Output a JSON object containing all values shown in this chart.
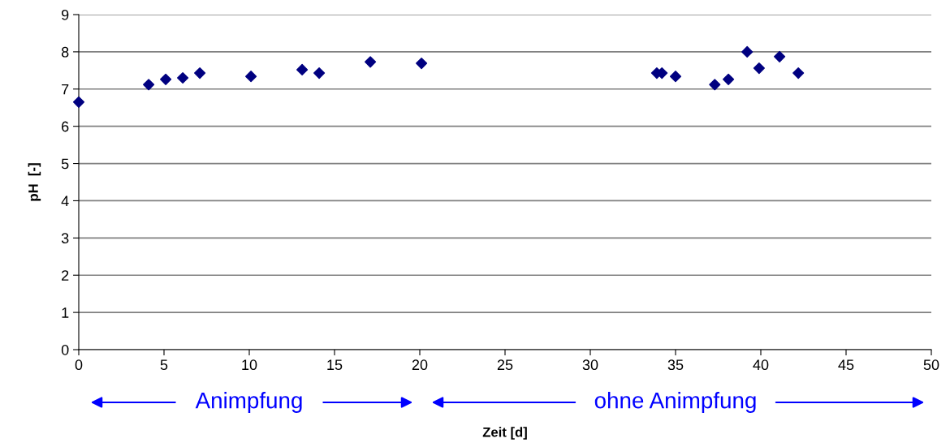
{
  "chart_data": {
    "type": "scatter",
    "xlabel": "Zeit [d]",
    "ylabel": "pH  [-]",
    "x": [
      0,
      4.1,
      5.1,
      6.1,
      7.1,
      10.1,
      13.1,
      14.1,
      17.1,
      20.1,
      33.9,
      34.2,
      35.0,
      37.3,
      38.1,
      39.2,
      39.9,
      41.1,
      42.2
    ],
    "series": [
      {
        "color": "#000080",
        "values": [
          6.65,
          7.12,
          7.26,
          7.3,
          7.43,
          7.34,
          7.52,
          7.43,
          7.73,
          7.69,
          7.43,
          7.43,
          7.34,
          7.12,
          7.26,
          8.0,
          7.56,
          7.87,
          7.43
        ]
      }
    ],
    "xlim": [
      0,
      50
    ],
    "xticks": [
      0,
      5,
      10,
      15,
      20,
      25,
      30,
      35,
      40,
      45,
      50
    ],
    "ylim": [
      0,
      9
    ],
    "yticks": [
      0,
      1,
      2,
      3,
      4,
      5,
      6,
      7,
      8,
      9
    ],
    "grid": "y",
    "marker": "diamond",
    "legend": false,
    "annotations": [
      "Animpfung",
      "ohne Animpfung"
    ]
  }
}
